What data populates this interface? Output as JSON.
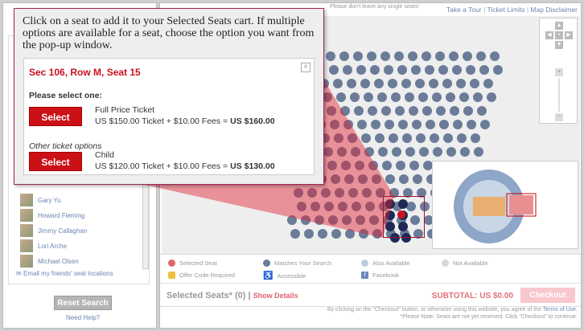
{
  "top_links": [
    "Take a Tour",
    "Ticket Limits",
    "Map Disclaimer"
  ],
  "hint": "Please don't leave any single seats!",
  "popup": {
    "instructions": "Click on a seat to add it to your Selected Seats cart. If multiple options are available for a seat, choose the option you want from the pop-up window.",
    "seat_title": "Sec 106, Row M, Seat 15",
    "prompt": "Please select one:",
    "select_label": "Select",
    "options": [
      {
        "name": "Full Price Ticket",
        "price": "US $150.00 Ticket + $10.00 Fees = ",
        "total": "US $160.00"
      },
      {
        "name": "Child",
        "price": "US $120.00 Ticket + $10.00 Fees = ",
        "total": "US $130.00"
      }
    ],
    "other_label": "Other ticket options",
    "close_icon": "×"
  },
  "friends": [
    "Gary Yu",
    "Howard Fleming",
    "Jimmy Callaghan",
    "Lori Arche",
    "Michael Olsen"
  ],
  "email_friends": "Email my friends' seat locations",
  "reset_label": "Reset Search",
  "help_label": "Need Help?",
  "legend": [
    {
      "label": "Selected Seat",
      "color": "#e06868"
    },
    {
      "label": "Matches Your Search",
      "color": "#6b7c99"
    },
    {
      "label": "Also Available",
      "color": "#b8cde0"
    },
    {
      "label": "Not Available",
      "color": "#d8d8d8"
    },
    {
      "label": "Offer Code Required",
      "color": "#f0c040"
    },
    {
      "label": "Accessible",
      "color": "#6b7c99"
    },
    {
      "label": "Facebook",
      "color": "#6b86b8"
    }
  ],
  "selected": {
    "title": "Selected Seats* (0)",
    "sep": "|",
    "show_details": "Show Details",
    "subtotal": "SUBTOTAL: US $0.00",
    "checkout": "Checkout"
  },
  "footer": {
    "line1": "By clicking on the \"Checkout\" button, or otherwise using this website, you agree of the ",
    "terms": "Terms of Use",
    "line2": "*Please Note: Seats are not yet reserved. Click \"Checkout\" to continue."
  }
}
